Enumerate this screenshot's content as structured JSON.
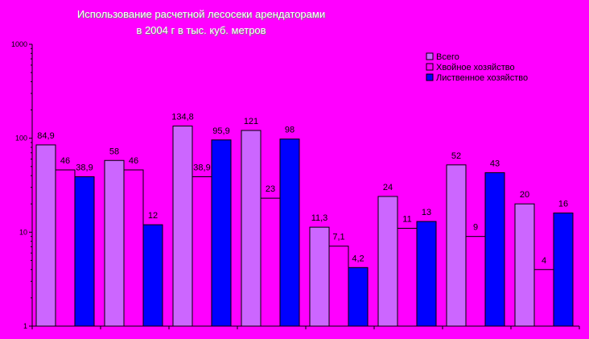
{
  "chart_data": {
    "type": "bar",
    "title": [
      "Использование расчетной лесосеки арендаторами",
      "в 2004 г в тыс. куб. метров"
    ],
    "xlabel": "",
    "ylabel": "",
    "y_scale": "log",
    "ylim": [
      1,
      1000
    ],
    "y_ticks": [
      1,
      10,
      100,
      1000
    ],
    "grid": false,
    "legend_position": "top-right",
    "categories": [
      "",
      "",
      "",
      "",
      "",
      "",
      "",
      ""
    ],
    "series": [
      {
        "name": "Всего",
        "color": "#CC66FF",
        "values": [
          84.9,
          58,
          134.8,
          121,
          11.3,
          24,
          52,
          20
        ],
        "labels": [
          "84,9",
          "58",
          "134,8",
          "121",
          "11,3",
          "24",
          "52",
          "20"
        ]
      },
      {
        "name": "Хвойное хозяйство",
        "color": "#FF00FF",
        "values": [
          46,
          46,
          38.9,
          23,
          7.1,
          11,
          9,
          4
        ],
        "labels": [
          "46",
          "46",
          "38,9",
          "23",
          "7,1",
          "11",
          "9",
          "4"
        ]
      },
      {
        "name": "Лиственное хозяйство",
        "color": "#0000FF",
        "values": [
          38.9,
          12,
          95.9,
          98,
          4.2,
          13,
          43,
          16
        ],
        "labels": [
          "38,9",
          "12",
          "95,9",
          "98",
          "4,2",
          "13",
          "43",
          "16"
        ]
      }
    ]
  }
}
